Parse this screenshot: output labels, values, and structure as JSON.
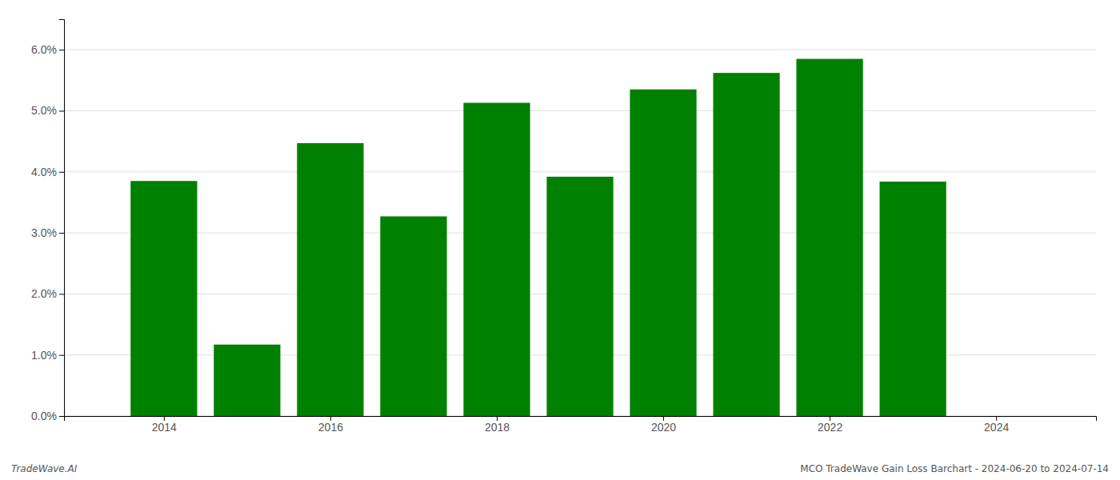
{
  "chart_data": {
    "type": "bar",
    "x": [
      2014,
      2015,
      2016,
      2017,
      2018,
      2019,
      2020,
      2021,
      2022,
      2023
    ],
    "values": [
      0.0385,
      0.0117,
      0.0447,
      0.0327,
      0.0513,
      0.0392,
      0.0535,
      0.0562,
      0.0585,
      0.0384
    ],
    "color": "#008000",
    "xlim": [
      2012.8,
      2025.2
    ],
    "xticks": [
      2014,
      2016,
      2018,
      2020,
      2022,
      2024
    ],
    "ylim": [
      0.0,
      0.065
    ],
    "yticks": [
      {
        "value": 0.0,
        "label": "0.0%"
      },
      {
        "value": 0.01,
        "label": "1.0%"
      },
      {
        "value": 0.02,
        "label": "2.0%"
      },
      {
        "value": 0.03,
        "label": "3.0%"
      },
      {
        "value": 0.04,
        "label": "4.0%"
      },
      {
        "value": 0.05,
        "label": "5.0%"
      },
      {
        "value": 0.06,
        "label": "6.0%"
      }
    ],
    "grid": true,
    "annotations": [
      "TradeWave.AI",
      "MCO TradeWave Gain Loss Barchart - 2024-06-20 to 2024-07-14"
    ]
  }
}
